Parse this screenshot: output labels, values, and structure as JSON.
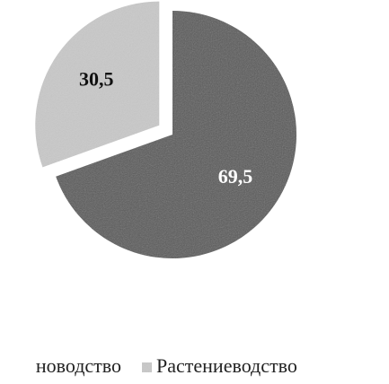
{
  "chart_data": {
    "type": "pie",
    "categories": [
      "новодство",
      "Растениеводство"
    ],
    "values": [
      69.5,
      30.5
    ],
    "value_labels": [
      "69,5",
      "30,5"
    ],
    "colors": [
      "#595959",
      "#c9c9c9"
    ],
    "exploded": [
      false,
      true
    ]
  }
}
